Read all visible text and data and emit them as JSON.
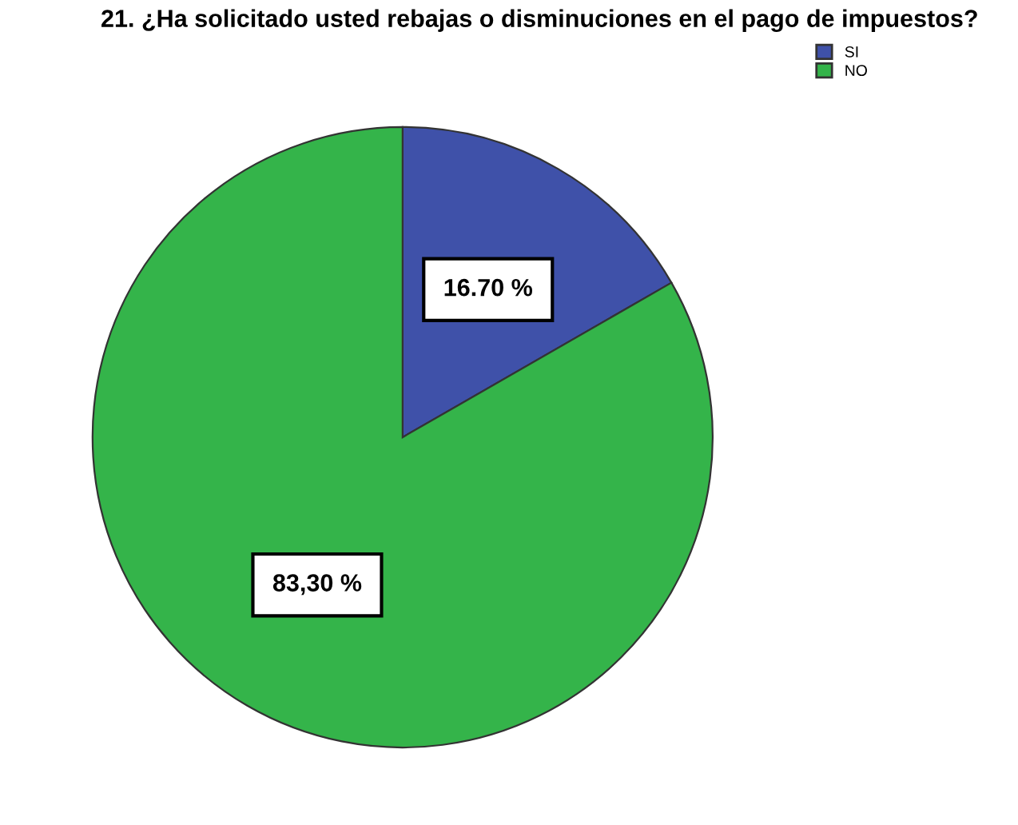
{
  "chart_data": {
    "type": "pie",
    "title": "21. ¿Ha solicitado usted rebajas o disminuciones en el pago de impuestos?",
    "categories": [
      "SI",
      "NO"
    ],
    "values": [
      16.7,
      83.3
    ],
    "colors": [
      "#3f51a9",
      "#34b44a"
    ],
    "value_labels": [
      "16.70 %",
      "83,30 %"
    ],
    "legend": "top right"
  }
}
